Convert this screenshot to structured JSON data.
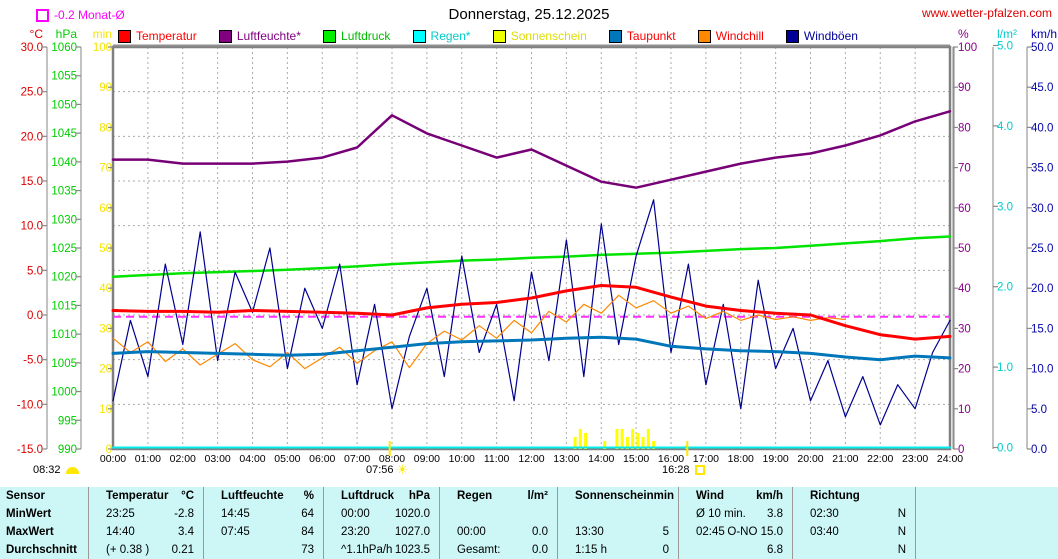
{
  "header": {
    "title": "Donnerstag, 25.12.2025",
    "website": "www.wetter-pfalzen.com",
    "month_avg_label": "-0.2 Monat-Ø"
  },
  "legend": {
    "items": [
      {
        "label": "Temperatur",
        "swatch": "#FF0000",
        "text_color": "#FF0000"
      },
      {
        "label": "Luftfeuchte*",
        "swatch": "#800080",
        "text_color": "#800080"
      },
      {
        "label": "Luftdruck",
        "swatch": "#00EE00",
        "text_color": "#00BB00"
      },
      {
        "label": "Regen*",
        "swatch": "#00FFFF",
        "text_color": "#00CCCC"
      },
      {
        "label": "Sonnenschein",
        "swatch": "#EEFF00",
        "text_color": "#DDDD00"
      },
      {
        "label": "Taupunkt",
        "swatch": "#0077BB",
        "text_color": "#FF0000"
      },
      {
        "label": "Windchill",
        "swatch": "#FF8800",
        "text_color": "#FF0000"
      },
      {
        "label": "Windböen",
        "swatch": "#000099",
        "text_color": "#000099"
      }
    ]
  },
  "annotations": {
    "corner_time": "08:32",
    "sunrise_time": "07:56",
    "sunset_time": "16:28"
  },
  "chart_data": {
    "type": "line",
    "title": "Donnerstag, 25.12.2025",
    "xlabel": "",
    "ylabel": "",
    "x_hours_range": [
      0,
      24
    ],
    "x_tick_labels": [
      "00:00",
      "01:00",
      "02:00",
      "03:00",
      "04:00",
      "05:00",
      "06:00",
      "07:00",
      "08:00",
      "09:00",
      "10:00",
      "11:00",
      "12:00",
      "13:00",
      "14:00",
      "15:00",
      "16:00",
      "17:00",
      "18:00",
      "19:00",
      "20:00",
      "21:00",
      "22:00",
      "23:00",
      "24:00"
    ],
    "axes": {
      "left": [
        {
          "unit": "°C",
          "color": "#DD0000",
          "min": -15,
          "max": 30,
          "step": 5,
          "decimals": 1,
          "label_x": 43,
          "line_x": 47,
          "scale": "temp"
        },
        {
          "unit": "hPa",
          "color": "#00CC00",
          "min": 990,
          "max": 1060,
          "step": 5,
          "decimals": 0,
          "label_x": 77,
          "line_x": 81,
          "scale": "hpa"
        },
        {
          "unit": "min",
          "color": "#F5E400",
          "min": 0,
          "max": 100,
          "step": 10,
          "decimals": 0,
          "label_x": 112,
          "line_x": 113,
          "scale": "min"
        }
      ],
      "right": [
        {
          "unit": "%",
          "color": "#880088",
          "min": 0,
          "max": 100,
          "step": 10,
          "decimals": 0,
          "label_x": 958,
          "line_x": 953,
          "scale": "percent"
        },
        {
          "unit": "l/m²",
          "color": "#00CCCC",
          "min": 0,
          "max": 5,
          "step": 1,
          "decimals": 1,
          "label_x": 997,
          "line_x": 993,
          "scale": "rain"
        },
        {
          "unit": "km/h",
          "color": "#0000AA",
          "min": 0,
          "max": 50,
          "step": 5,
          "decimals": 1,
          "label_x": 1031,
          "line_x": 1027,
          "scale": "kmh"
        }
      ]
    },
    "reference_line": {
      "label": "-0.2 Monat-Ø",
      "value": -0.2,
      "color": "#FF30FF"
    },
    "sun_marks": {
      "sunrise": {
        "t": 7.933,
        "label": "07:56"
      },
      "sunset": {
        "t": 16.467,
        "label": "16:28"
      }
    },
    "series": [
      {
        "name": "Luftdruck",
        "unit": "hPa",
        "axis": "hpa",
        "color": "#00E400",
        "width": 2.5,
        "x_step": 1,
        "values": [
          1020.0,
          1020.3,
          1020.6,
          1020.8,
          1021.0,
          1021.2,
          1021.5,
          1021.8,
          1022.2,
          1022.5,
          1022.8,
          1023.0,
          1023.3,
          1023.5,
          1023.8,
          1024.0,
          1024.2,
          1024.5,
          1024.8,
          1025.0,
          1025.4,
          1025.8,
          1026.2,
          1026.7,
          1027.0
        ]
      },
      {
        "name": "Luftfeuchte",
        "unit": "%",
        "axis": "percent",
        "color": "#770077",
        "width": 2.5,
        "x_step": 1,
        "values": [
          72,
          72,
          71,
          71,
          71,
          71.5,
          72.5,
          75,
          83,
          78.5,
          75.5,
          72.5,
          74.5,
          70.5,
          66.5,
          65,
          67,
          69,
          71,
          72.5,
          73.5,
          75.5,
          78,
          81.5,
          84
        ]
      },
      {
        "name": "Regen",
        "unit": "l/m²",
        "axis": "rain",
        "color": "#00EEEE",
        "width": 2,
        "x_step": 1,
        "values": [
          0,
          0,
          0,
          0,
          0,
          0,
          0,
          0,
          0,
          0,
          0,
          0,
          0,
          0,
          0,
          0,
          0,
          0,
          0,
          0,
          0,
          0,
          0,
          0,
          0
        ]
      },
      {
        "name": "Windböen",
        "unit": "km/h",
        "axis": "kmh",
        "color": "#000090",
        "width": 1.2,
        "x_step": 0.5,
        "values": [
          6,
          16,
          9,
          23,
          13,
          27,
          11,
          22,
          17,
          25,
          10,
          20,
          15,
          23,
          8,
          18,
          5,
          14,
          20,
          9,
          24,
          12,
          18,
          6,
          22,
          11,
          26,
          9,
          28,
          13,
          24,
          31,
          12,
          23,
          8,
          18,
          5,
          21,
          10,
          15,
          6,
          11,
          4,
          9,
          3,
          8,
          5,
          12,
          16
        ]
      },
      {
        "name": "Windchill",
        "unit": "°C",
        "axis": "temp",
        "color": "#FF8800",
        "width": 1.2,
        "x_step": 0.5,
        "values": [
          -2.6,
          -4.2,
          -3.0,
          -5.2,
          -3.8,
          -5.6,
          -4.4,
          -3.2,
          -5.0,
          -5.8,
          -4.2,
          -6.0,
          -4.8,
          -3.6,
          -5.4,
          -4.0,
          -3.0,
          -5.9,
          -3.2,
          -1.8,
          -2.8,
          -1.2,
          -2.6,
          -0.6,
          -2.0,
          0.4,
          -0.8,
          1.2,
          0.2,
          2.2,
          0.8,
          1.6,
          0.2,
          1.0,
          -0.4,
          0.4,
          -0.6,
          0.0,
          -0.5,
          -0.2,
          -0.6,
          -0.3,
          -0.5
        ]
      },
      {
        "name": "Taupunkt",
        "unit": "°C",
        "axis": "temp",
        "color": "#0077BB",
        "width": 3,
        "x_step": 1,
        "values": [
          -4.3,
          -4.1,
          -4.2,
          -4.3,
          -4.4,
          -4.5,
          -4.4,
          -4.0,
          -3.6,
          -3.2,
          -3.0,
          -2.9,
          -2.8,
          -2.6,
          -2.5,
          -2.7,
          -3.5,
          -3.8,
          -4.0,
          -4.1,
          -4.3,
          -4.7,
          -5.0,
          -4.6,
          -4.8
        ]
      },
      {
        "name": "Temperatur",
        "unit": "°C",
        "axis": "temp",
        "color": "#FF0000",
        "width": 3,
        "x_step": 1,
        "values": [
          0.5,
          0.4,
          0.4,
          0.3,
          0.5,
          0.4,
          0.3,
          0.2,
          0.0,
          0.8,
          1.2,
          1.4,
          1.9,
          2.7,
          3.3,
          3.1,
          2.0,
          1.0,
          0.5,
          0.2,
          0.0,
          -1.2,
          -2.2,
          -2.7,
          -2.4
        ]
      }
    ],
    "bars": {
      "name": "Sonnenschein",
      "unit": "min",
      "axis": "min",
      "color": "#FFFF00",
      "points": [
        [
          13.25,
          3
        ],
        [
          13.4,
          5
        ],
        [
          13.55,
          4
        ],
        [
          14.1,
          2
        ],
        [
          14.45,
          5
        ],
        [
          14.6,
          5
        ],
        [
          14.75,
          3
        ],
        [
          14.9,
          5
        ],
        [
          15.05,
          4
        ],
        [
          15.2,
          3
        ],
        [
          15.35,
          5
        ],
        [
          15.5,
          2
        ],
        [
          16.45,
          1
        ]
      ]
    }
  },
  "table": {
    "headers": [
      {
        "label": "Sensor",
        "unit": ""
      },
      {
        "label": "Temperatur",
        "unit": "°C"
      },
      {
        "label": "Luftfeuchte",
        "unit": "%"
      },
      {
        "label": "Luftdruck",
        "unit": "hPa"
      },
      {
        "label": "Regen",
        "unit": "l/m²"
      },
      {
        "label": "Sonnenschein",
        "unit": "min"
      },
      {
        "label": "Wind",
        "unit": "km/h"
      },
      {
        "label": "Richtung",
        "unit": ""
      }
    ],
    "rows": [
      {
        "label": "MinWert",
        "cells": [
          [
            "23:25",
            "-2.8"
          ],
          [
            "14:45",
            "64"
          ],
          [
            "00:00",
            "1020.0"
          ],
          [
            "",
            ""
          ],
          [
            "",
            ""
          ],
          [
            "Ø 10 min.",
            "3.8"
          ],
          [
            "02:30",
            "N"
          ]
        ]
      },
      {
        "label": "MaxWert",
        "cells": [
          [
            "14:40",
            "3.4"
          ],
          [
            "07:45",
            "84"
          ],
          [
            "23:20",
            "1027.0"
          ],
          [
            "00:00",
            "0.0"
          ],
          [
            "13:30",
            "5"
          ],
          [
            "02:45",
            "O-NO 15.0"
          ],
          [
            "03:40",
            "N"
          ]
        ]
      },
      {
        "label": "Durchschnitt",
        "cells": [
          [
            "(+ 0.38 )",
            "0.21"
          ],
          [
            "",
            "73"
          ],
          [
            "^1.1hPa/h",
            "1023.5"
          ],
          [
            "Gesamt:",
            "0.0"
          ],
          [
            "1:15 h",
            "0"
          ],
          [
            "",
            "6.8"
          ],
          [
            "",
            "N"
          ]
        ]
      }
    ]
  }
}
